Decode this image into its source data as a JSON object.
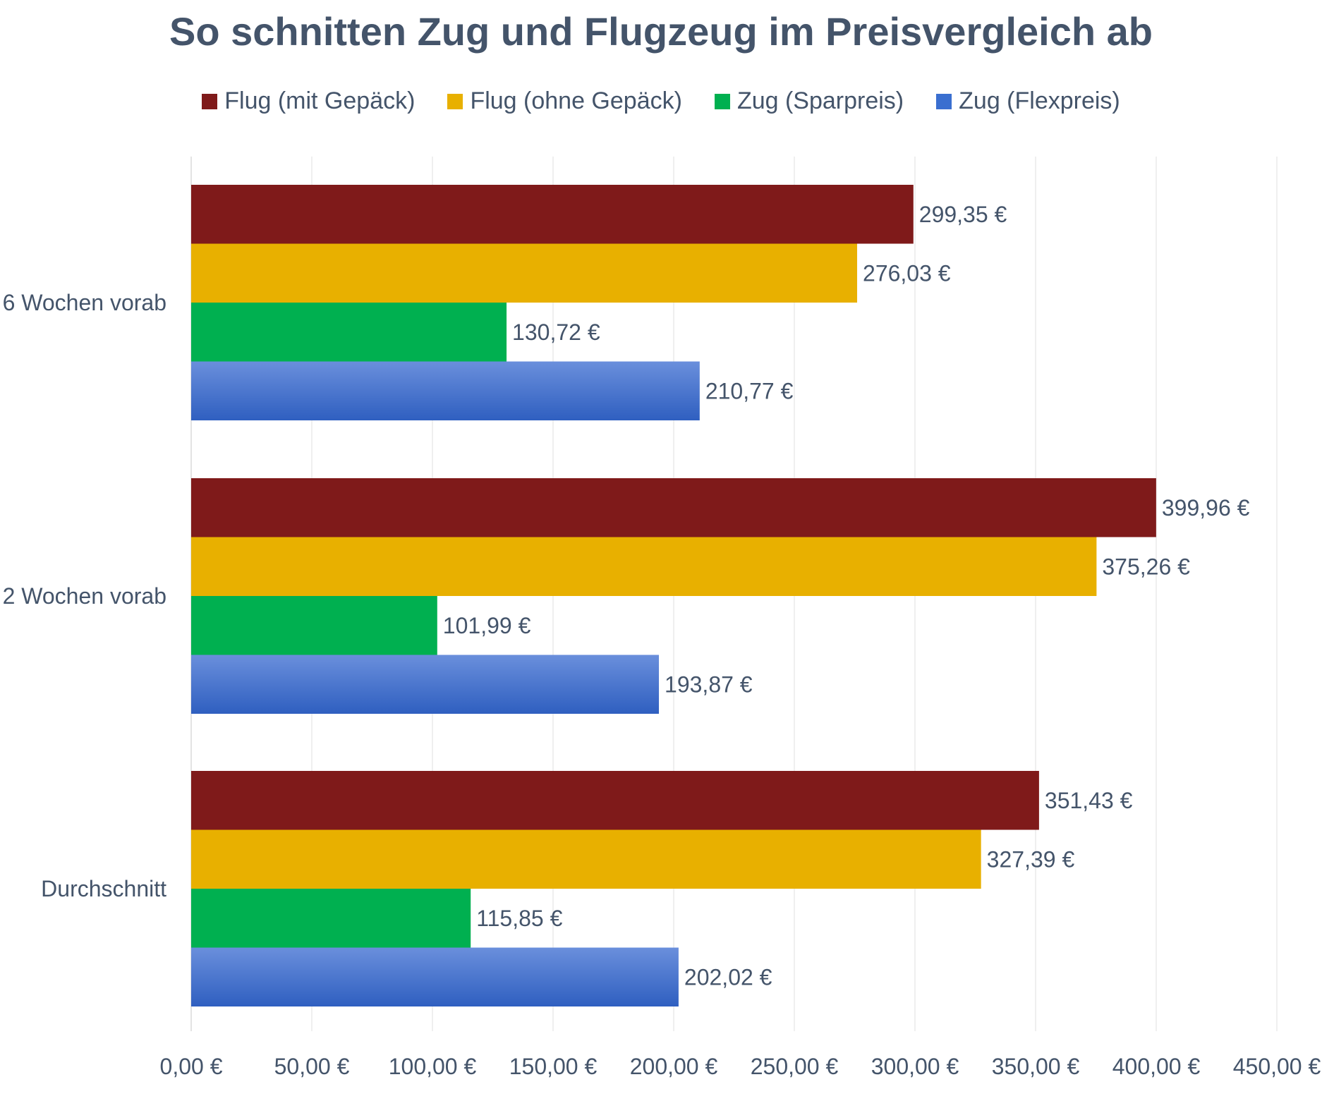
{
  "chart_data": {
    "type": "bar",
    "orientation": "horizontal",
    "title": "So schnitten Zug und Flugzeug im Preisvergleich ab",
    "categories": [
      "6 Wochen vorab",
      "2 Wochen vorab",
      "Durchschnitt"
    ],
    "series": [
      {
        "name": "Flug (mit Gepäck)",
        "color": "#7f1a1a",
        "values": [
          299.35,
          399.96,
          351.43
        ],
        "labels": [
          "299,35 €",
          "399,96 €",
          "351,43 €"
        ]
      },
      {
        "name": "Flug (ohne Gepäck)",
        "color": "#e8b000",
        "values": [
          276.03,
          375.26,
          327.39
        ],
        "labels": [
          "276,03 €",
          "375,26 €",
          "327,39 €"
        ]
      },
      {
        "name": "Zug (Sparpreis)",
        "color": "#00b050",
        "values": [
          130.72,
          101.99,
          115.85
        ],
        "labels": [
          "130,72 €",
          "101,99 €",
          "115,85 €"
        ]
      },
      {
        "name": "Zug (Flexpreis)",
        "color": "#3a6fd0",
        "values": [
          210.77,
          193.87,
          202.02
        ],
        "labels": [
          "210,77 €",
          "193,87 €",
          "202,02 €"
        ]
      }
    ],
    "xlim": [
      0,
      450
    ],
    "xticks": [
      0,
      50,
      100,
      150,
      200,
      250,
      300,
      350,
      400,
      450
    ],
    "xtick_labels": [
      "0,00 €",
      "50,00 €",
      "100,00 €",
      "150,00 €",
      "200,00 €",
      "250,00 €",
      "300,00 €",
      "350,00 €",
      "400,00 €",
      "450,00 €"
    ],
    "grid": true,
    "legend_position": "top"
  }
}
